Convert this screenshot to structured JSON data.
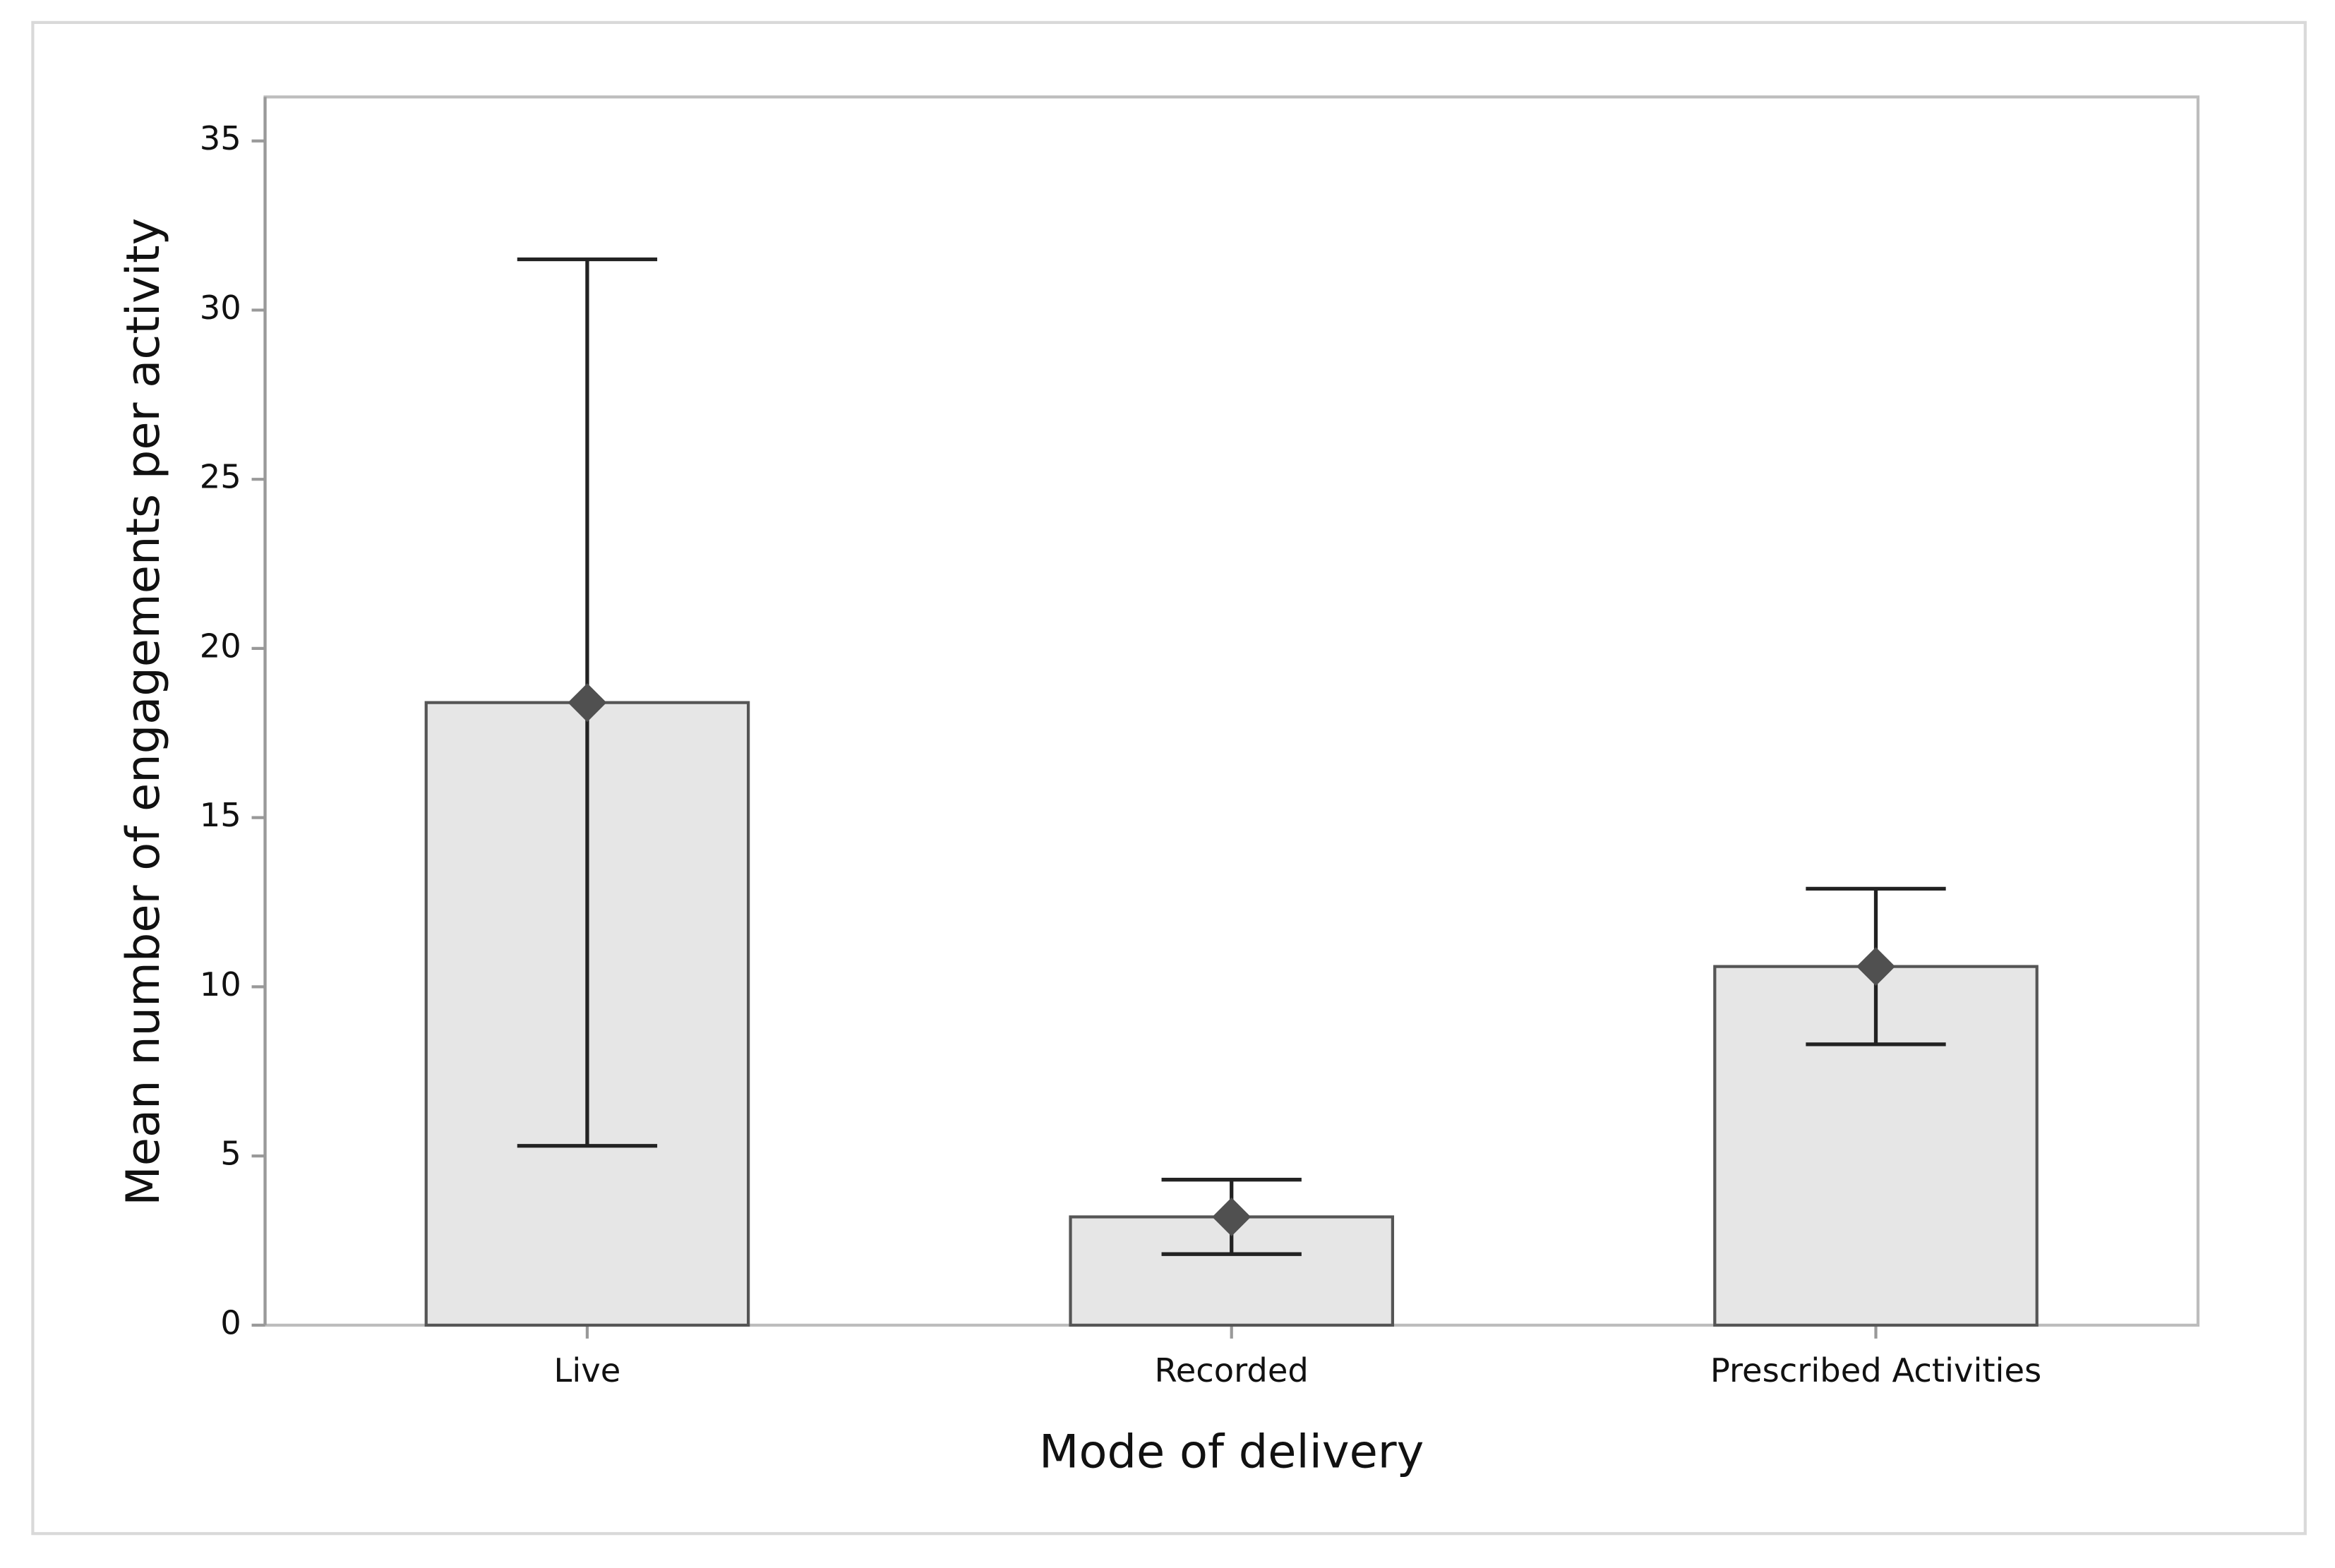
{
  "chart_data": {
    "type": "bar",
    "x_label": "Mode of delivery",
    "y_label": "Mean number of engagements per activity",
    "categories": [
      "Live",
      "Recorded",
      "Prescribed Activities"
    ],
    "values": [
      18.4,
      3.2,
      10.6
    ],
    "errors": [
      13.1,
      1.1,
      2.3
    ],
    "color": "#e6e6e6",
    "marker_color": "#505050",
    "ylim": [
      0,
      36.3
    ],
    "yticks": [
      0,
      5,
      10,
      15,
      20,
      25,
      30,
      35
    ]
  }
}
